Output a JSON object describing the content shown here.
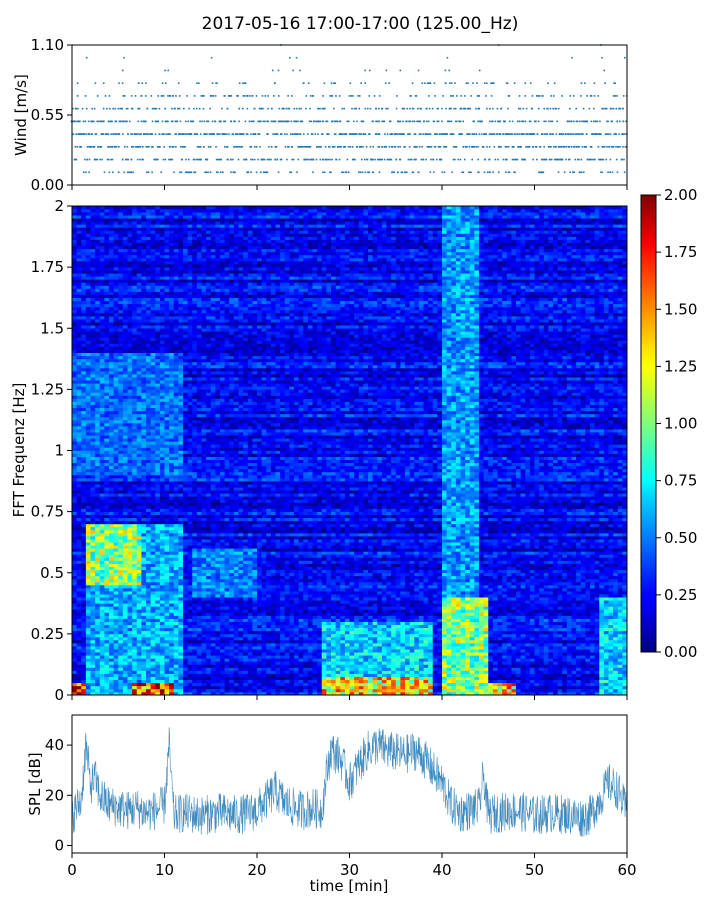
{
  "figure": {
    "title": "2017-05-16 17:00-17:00 (125.00_Hz)"
  },
  "colors": {
    "series": "#1f77b4",
    "colormap": "jet"
  },
  "chart_data": [
    {
      "type": "scatter",
      "panel": "wind",
      "title": "",
      "xlabel": "",
      "ylabel": "Wind [m/s]",
      "xlim": [
        0,
        60
      ],
      "ylim": [
        0,
        1.1
      ],
      "yticks": [
        0.0,
        0.55,
        1.1
      ],
      "ytick_labels": [
        "0.00",
        "0.55",
        "1.10"
      ],
      "xticks": [
        0,
        10,
        20,
        30,
        40,
        50,
        60
      ],
      "show_xtick_labels": false,
      "grid": false,
      "levels": [
        0.1,
        0.2,
        0.3,
        0.4,
        0.5,
        0.6,
        0.7,
        0.8,
        0.9,
        1.0,
        1.1
      ],
      "level_density": [
        0.35,
        0.55,
        0.75,
        0.9,
        0.7,
        0.45,
        0.25,
        0.12,
        0.05,
        0.02,
        0.01
      ],
      "points_per_minute": 30
    },
    {
      "type": "heatmap",
      "panel": "spectrogram",
      "title": "",
      "xlabel": "",
      "ylabel": "FFT Frequenz [Hz]",
      "xlim": [
        0,
        60
      ],
      "ylim": [
        0,
        2
      ],
      "yticks": [
        0,
        0.25,
        0.5,
        0.75,
        1,
        1.25,
        1.5,
        1.75,
        2
      ],
      "ytick_labels": [
        "0",
        "0.25",
        "0.5",
        "0.75",
        "1",
        "1.25",
        "1.5",
        "1.75",
        "2"
      ],
      "xticks": [
        0,
        10,
        20,
        30,
        40,
        50,
        60
      ],
      "show_xtick_labels": false,
      "colorbar": {
        "range": [
          0,
          2
        ],
        "ticks": [
          "0.00",
          "0.25",
          "0.50",
          "0.75",
          "1.00",
          "1.25",
          "1.50",
          "1.75",
          "2.00"
        ]
      },
      "n_time_bins": 120,
      "n_freq_bins": 160,
      "base_level": 0.25,
      "active_regions": [
        {
          "t0": 0,
          "t1": 1.5,
          "f0": 0,
          "f1": 0.05,
          "value": 2.0
        },
        {
          "t0": 1.5,
          "t1": 7.5,
          "f0": 0.45,
          "f1": 0.7,
          "value": 1.2
        },
        {
          "t0": 1.5,
          "t1": 12,
          "f0": 0,
          "f1": 0.7,
          "value": 0.7
        },
        {
          "t0": 6.5,
          "t1": 11,
          "f0": 0,
          "f1": 0.05,
          "value": 2.0
        },
        {
          "t0": 0,
          "t1": 12,
          "f0": 0.9,
          "f1": 1.4,
          "value": 0.55
        },
        {
          "t0": 13,
          "t1": 20,
          "f0": 0.4,
          "f1": 0.6,
          "value": 0.6
        },
        {
          "t0": 27,
          "t1": 39,
          "f0": 0,
          "f1": 0.08,
          "value": 1.5
        },
        {
          "t0": 27,
          "t1": 39,
          "f0": 0,
          "f1": 0.3,
          "value": 0.8
        },
        {
          "t0": 40,
          "t1": 44,
          "f0": 0,
          "f1": 2.0,
          "value": 0.65
        },
        {
          "t0": 40,
          "t1": 45,
          "f0": 0,
          "f1": 0.4,
          "value": 1.2
        },
        {
          "t0": 45,
          "t1": 48,
          "f0": 0,
          "f1": 0.05,
          "value": 1.6
        },
        {
          "t0": 57,
          "t1": 60,
          "f0": 0,
          "f1": 0.4,
          "value": 0.8
        }
      ]
    },
    {
      "type": "line",
      "panel": "spl",
      "title": "",
      "xlabel": "time [min]",
      "ylabel": "SPL [dB]",
      "xlim": [
        0,
        60
      ],
      "ylim": [
        -3,
        52
      ],
      "yticks": [
        0,
        20,
        40
      ],
      "ytick_labels": [
        "0",
        "20",
        "40"
      ],
      "xticks": [
        0,
        10,
        20,
        30,
        40,
        50,
        60
      ],
      "xtick_labels": [
        "0",
        "10",
        "20",
        "30",
        "40",
        "50",
        "60"
      ],
      "grid": false,
      "x": [
        0,
        1,
        1.5,
        2,
        2.5,
        3,
        4,
        5,
        6,
        7,
        8,
        9,
        10,
        10.5,
        11,
        12,
        14,
        16,
        18,
        20,
        21,
        22,
        23,
        24,
        25,
        26,
        27,
        27.5,
        28,
        29,
        29.5,
        30,
        31,
        32,
        33,
        34,
        35,
        36,
        37,
        38,
        39,
        40,
        41,
        42,
        43,
        44,
        44.5,
        45,
        46,
        48,
        50,
        52,
        54,
        55,
        56,
        57,
        58,
        59,
        60
      ],
      "y": [
        12,
        18,
        40,
        24,
        27,
        20,
        16,
        15,
        14,
        15,
        13,
        14,
        16,
        40,
        12,
        13,
        12,
        13,
        12,
        14,
        18,
        22,
        17,
        15,
        14,
        15,
        14,
        28,
        38,
        35,
        30,
        25,
        32,
        38,
        40,
        38,
        37,
        36,
        38,
        35,
        30,
        25,
        16,
        13,
        14,
        15,
        28,
        12,
        13,
        14,
        12,
        13,
        12,
        11,
        12,
        18,
        25,
        22,
        13
      ],
      "noise_spread": 8
    }
  ]
}
